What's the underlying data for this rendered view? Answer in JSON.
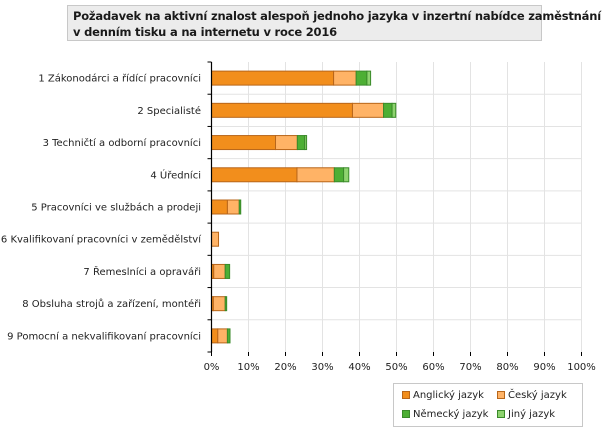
{
  "chart_data": {
    "type": "bar",
    "orientation": "horizontal",
    "stacked": true,
    "title_lines": [
      "Požadavek na aktivní znalost alespoň jednoho jazyka v inzertní nabídce zaměstnání",
      "v denním tisku a na internetu v roce 2016"
    ],
    "categories": [
      "1 Zákonodárci a řídící pracovníci",
      "2 Specialisté",
      "3 Techničtí a odborní pracovníci",
      "4 Úředníci",
      "5 Pracovníci ve službách a prodeji",
      "6 Kvalifikovaní pracovníci v zemědělství",
      "7 Řemeslníci a opraváři",
      "8 Obsluha strojů a zařízení, montéři",
      "9 Pomocní a nekvalifikovaní pracovníci"
    ],
    "series": [
      {
        "name": "Anglický jazyk",
        "color": "#f28e1c",
        "border": "#b8661a",
        "values": [
          33.0,
          38.1,
          17.3,
          23.1,
          4.3,
          0.0,
          0.6,
          0.5,
          1.7
        ]
      },
      {
        "name": "Český jazyk",
        "color": "#ffb366",
        "border": "#b8661a",
        "values": [
          6.1,
          8.4,
          5.9,
          10.1,
          3.2,
          1.9,
          3.1,
          3.2,
          2.6
        ]
      },
      {
        "name": "Německý jazyk",
        "color": "#4daf34",
        "border": "#3a8a2a",
        "values": [
          2.9,
          2.3,
          2.0,
          2.5,
          0.4,
          0.0,
          1.2,
          0.4,
          0.7
        ]
      },
      {
        "name": "Jiný jazyk",
        "color": "#8ed36f",
        "border": "#3a8a2a",
        "values": [
          1.0,
          1.0,
          0.5,
          1.4,
          0.0,
          0.0,
          0.0,
          0.0,
          0.0
        ]
      }
    ],
    "xlim": [
      0,
      100
    ],
    "x_ticks": [
      "0%",
      "10%",
      "20%",
      "30%",
      "40%",
      "50%",
      "60%",
      "70%",
      "80%",
      "90%",
      "100%"
    ],
    "grid": true,
    "legend_position": "bottom-right"
  }
}
